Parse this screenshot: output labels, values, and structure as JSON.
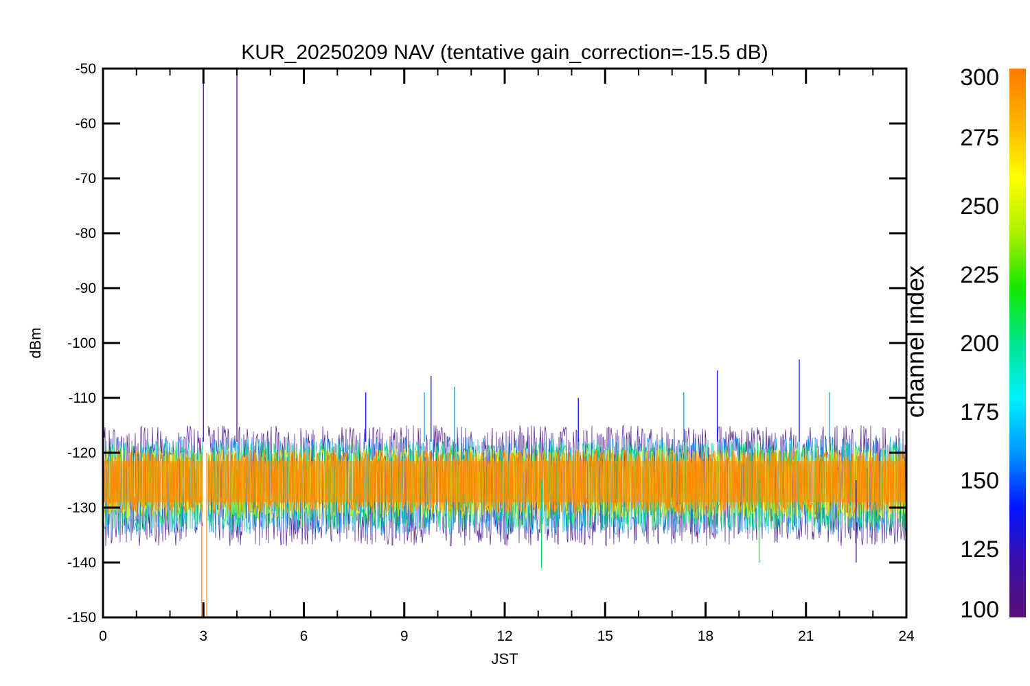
{
  "chart_data": {
    "type": "line",
    "title": "KUR_20250209 NAV (tentative gain_correction=-15.5 dB)",
    "xlabel": "JST",
    "ylabel": "dBm",
    "xlim": [
      0,
      24
    ],
    "ylim": [
      -150,
      -50
    ],
    "x_ticks": [
      "0",
      "3",
      "6",
      "9",
      "12",
      "15",
      "18",
      "21",
      "24"
    ],
    "y_ticks": [
      "-50",
      "-60",
      "-70",
      "-80",
      "-90",
      "-100",
      "-110",
      "-120",
      "-130",
      "-140",
      "-150"
    ],
    "grid": false,
    "colorbar": {
      "label": "channel index",
      "range": [
        100,
        300
      ],
      "ticks": [
        "300",
        "275",
        "250",
        "225",
        "200",
        "175",
        "150",
        "125",
        "100"
      ],
      "colormap": [
        "#5c0f78",
        "#3b10a8",
        "#0014ff",
        "#0096ff",
        "#00f0ff",
        "#00e68c",
        "#14e600",
        "#aaf000",
        "#ffff00",
        "#ffb400",
        "#ff7800"
      ]
    },
    "series": [
      {
        "channel_group": "low (100-125)",
        "color": "#4b0f8c",
        "band_x": [
          0,
          24
        ],
        "typical_range_dbm": [
          -137,
          -115
        ]
      },
      {
        "channel_group": "mid (150-175)",
        "color": "#00a0ff",
        "band_x": [
          0,
          24
        ],
        "typical_range_dbm": [
          -135,
          -117
        ]
      },
      {
        "channel_group": "green (200-250)",
        "color": "#00e060",
        "band_x": [
          0,
          24
        ],
        "typical_range_dbm": [
          -134,
          -118
        ]
      },
      {
        "channel_group": "yellow (275)",
        "color": "#f0f000",
        "band_x": [
          0,
          24
        ],
        "typical_range_dbm": [
          -132,
          -119
        ]
      },
      {
        "channel_group": "orange (300)",
        "color": "#ff8c00",
        "band_x": [
          0,
          24
        ],
        "typical_range_dbm": [
          -131,
          -119.5
        ]
      }
    ],
    "spikes": [
      {
        "x": 3.0,
        "y_top": -52,
        "y_bottom": -118,
        "color": "#4b0f8c"
      },
      {
        "x": 4.0,
        "y_top": -50,
        "y_bottom": -118,
        "color": "#4b0f8c"
      },
      {
        "x": 2.95,
        "y_top": -120,
        "y_bottom": -150,
        "color": "#ff8c00"
      },
      {
        "x": 3.1,
        "y_top": -120,
        "y_bottom": -150,
        "color": "#ff8c00"
      },
      {
        "x": 7.85,
        "y_top": -109,
        "y_bottom": -118,
        "color": "#0014ff"
      },
      {
        "x": 9.8,
        "y_top": -106,
        "y_bottom": -118,
        "color": "#0014ff"
      },
      {
        "x": 9.6,
        "y_top": -109,
        "y_bottom": -118,
        "color": "#00a0ff"
      },
      {
        "x": 10.5,
        "y_top": -108,
        "y_bottom": -118,
        "color": "#00a0ff"
      },
      {
        "x": 14.2,
        "y_top": -110,
        "y_bottom": -118,
        "color": "#0014ff"
      },
      {
        "x": 17.35,
        "y_top": -109,
        "y_bottom": -118,
        "color": "#00a0ff"
      },
      {
        "x": 18.35,
        "y_top": -105,
        "y_bottom": -118,
        "color": "#0014ff"
      },
      {
        "x": 20.8,
        "y_top": -103,
        "y_bottom": -118,
        "color": "#0014ff"
      },
      {
        "x": 21.7,
        "y_top": -109,
        "y_bottom": -118,
        "color": "#00a0ff"
      },
      {
        "x": 13.1,
        "y_top": -125,
        "y_bottom": -141,
        "color": "#00e060"
      },
      {
        "x": 19.6,
        "y_top": -125,
        "y_bottom": -140,
        "color": "#00e060"
      },
      {
        "x": 22.5,
        "y_top": -125,
        "y_bottom": -140,
        "color": "#4b0f8c"
      }
    ],
    "gap": {
      "x": [
        3.0,
        3.1
      ]
    }
  }
}
